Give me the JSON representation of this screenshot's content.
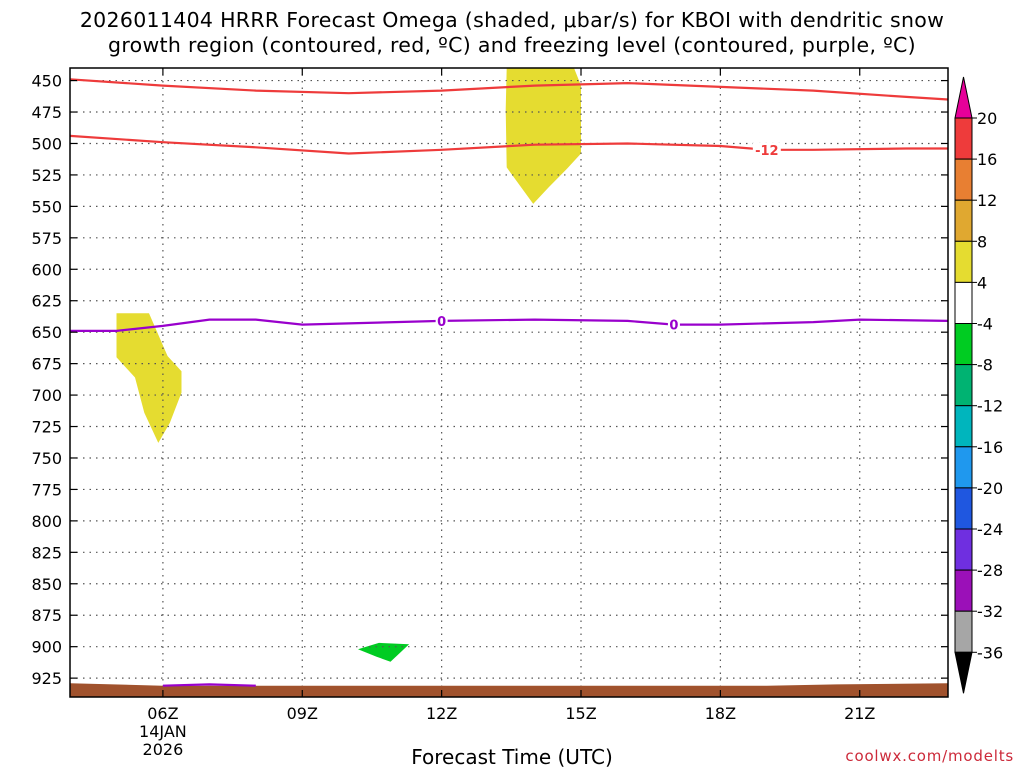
{
  "title": {
    "line1": "2026011404 HRRR Forecast Omega (shaded, μbar/s) for KBOI with dendritic snow",
    "line2": "growth region (contoured, red, ºC) and freezing level (contoured, purple, ºC)"
  },
  "credit": "coolwx.com/modelts",
  "chart_data": {
    "type": "time-height cross section",
    "xlabel": "Forecast Time (UTC)",
    "x_ticks": [
      {
        "hours": 6,
        "label": "06Z",
        "sub1": "14JAN",
        "sub2": "2026"
      },
      {
        "hours": 9,
        "label": "09Z"
      },
      {
        "hours": 12,
        "label": "12Z"
      },
      {
        "hours": 15,
        "label": "15Z"
      },
      {
        "hours": 18,
        "label": "18Z"
      },
      {
        "hours": 21,
        "label": "21Z"
      }
    ],
    "xlim": [
      4,
      22.9
    ],
    "y_ticks": [
      450,
      475,
      500,
      525,
      550,
      575,
      600,
      625,
      650,
      675,
      700,
      725,
      750,
      775,
      800,
      825,
      850,
      875,
      900,
      925
    ],
    "ylim": [
      440,
      940
    ],
    "grid": true,
    "omega_shaded": [
      {
        "name": "omega 4 to 8",
        "color": "#e5dc30",
        "polygon": [
          [
            5,
            635
          ],
          [
            5.7,
            635
          ],
          [
            6.1,
            669
          ],
          [
            6.4,
            681
          ],
          [
            6.4,
            698
          ],
          [
            6.15,
            722
          ],
          [
            5.9,
            738
          ],
          [
            5.6,
            714
          ],
          [
            5.4,
            686
          ],
          [
            5,
            670
          ]
        ]
      },
      {
        "name": "omega 4 to 8",
        "color": "#e5dc30",
        "polygon": [
          [
            13.4,
            440
          ],
          [
            14.85,
            440
          ],
          [
            15,
            454
          ],
          [
            15,
            508
          ],
          [
            14.7,
            520
          ],
          [
            14.3,
            535
          ],
          [
            13.97,
            548
          ],
          [
            13.4,
            519
          ],
          [
            13.38,
            473
          ]
        ]
      },
      {
        "name": "omega -8 to -4",
        "color": "#00cc22",
        "polygon": [
          [
            10.2,
            902
          ],
          [
            10.65,
            897
          ],
          [
            11.3,
            898
          ],
          [
            10.9,
            912
          ],
          [
            10.6,
            908
          ]
        ]
      }
    ],
    "dgz_contours": [
      {
        "label": "",
        "color": "#ee3b3b",
        "points": [
          [
            4,
            449
          ],
          [
            6,
            454
          ],
          [
            8,
            458
          ],
          [
            10,
            460
          ],
          [
            12,
            458
          ],
          [
            14,
            454
          ],
          [
            16,
            452
          ],
          [
            18,
            455
          ],
          [
            20,
            458
          ],
          [
            22,
            463
          ],
          [
            22.9,
            465
          ]
        ]
      },
      {
        "label": "-12",
        "color": "#ee3b3b",
        "label_at": 19,
        "points": [
          [
            4,
            494
          ],
          [
            6,
            499
          ],
          [
            8,
            503
          ],
          [
            10,
            508
          ],
          [
            12,
            505
          ],
          [
            14,
            501
          ],
          [
            16,
            500
          ],
          [
            18,
            502
          ],
          [
            19,
            505
          ],
          [
            20,
            505
          ],
          [
            22,
            504
          ],
          [
            22.9,
            504
          ]
        ]
      }
    ],
    "freezing_level": [
      {
        "label": "0",
        "color": "#9900cc",
        "label_at": [
          12,
          17
        ],
        "points": [
          [
            4,
            649
          ],
          [
            5,
            649
          ],
          [
            6,
            645
          ],
          [
            7,
            640
          ],
          [
            8,
            640
          ],
          [
            9,
            644
          ],
          [
            10,
            643
          ],
          [
            12,
            641
          ],
          [
            14,
            640
          ],
          [
            16,
            641
          ],
          [
            17,
            644
          ],
          [
            18,
            644
          ],
          [
            20,
            642
          ],
          [
            21,
            640
          ],
          [
            22.9,
            641
          ]
        ]
      },
      {
        "label": "",
        "color": "#9900cc",
        "points": [
          [
            6,
            931
          ],
          [
            7,
            930
          ],
          [
            8,
            931
          ]
        ]
      }
    ],
    "ground": {
      "color": "#a0522d",
      "points": [
        [
          4,
          929
        ],
        [
          6,
          931
        ],
        [
          7,
          931
        ],
        [
          9,
          931
        ],
        [
          12,
          931
        ],
        [
          16,
          931
        ],
        [
          19,
          931
        ],
        [
          20.5,
          930
        ],
        [
          22.9,
          929
        ]
      ],
      "bottom": 940
    },
    "colorbar": {
      "ticks": [
        20,
        16,
        12,
        8,
        4,
        -4,
        -8,
        -12,
        -16,
        -20,
        -24,
        -28,
        -32,
        -36
      ],
      "colors": [
        "#ee3b3b",
        "#e87f32",
        "#e0a830",
        "#e5dc30",
        "#ffffff",
        "#00cc22",
        "#00b372",
        "#00b5bd",
        "#1f98ee",
        "#1f57e0",
        "#6f2fe0",
        "#9b10b8",
        "#a6a6a6"
      ],
      "upper_arrow": "#e60099",
      "lower_arrow": "#000000"
    }
  }
}
